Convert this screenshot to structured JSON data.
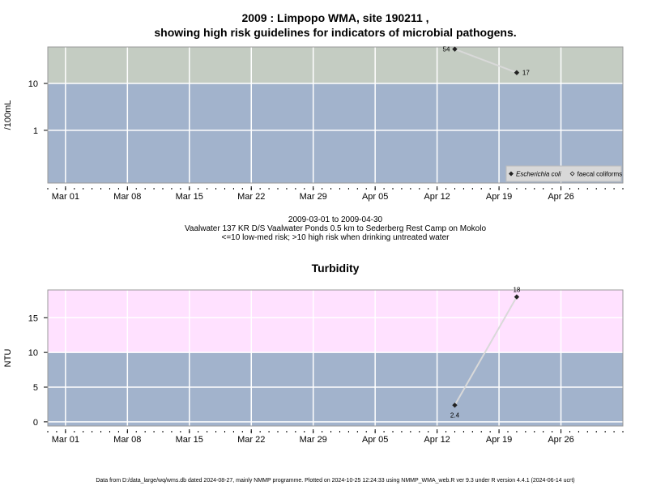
{
  "colors": {
    "panel": "#a2b3cc",
    "risk_band_micro": "#c4ccc2",
    "risk_band_turb": "#ffe1ff",
    "grid": "#ffffff",
    "marker": "#222222",
    "line": "#d9d9d9"
  },
  "chart_data": [
    {
      "type": "line",
      "title": [
        "2009 : Limpopo WMA, site 190211 ,",
        "showing high risk guidelines for indicators of microbial pathogens."
      ],
      "ylabel": "/100mL",
      "xlabel": "",
      "x_tick_labels": [
        "Mar 01",
        "Mar 08",
        "Mar 15",
        "Mar 22",
        "Mar 29",
        "Apr 05",
        "Apr 12",
        "Apr 19",
        "Apr 26"
      ],
      "x_tick_dates": [
        "2009-03-01",
        "2009-03-08",
        "2009-03-15",
        "2009-03-22",
        "2009-03-29",
        "2009-04-05",
        "2009-04-12",
        "2009-04-19",
        "2009-04-26"
      ],
      "xlim": [
        "2009-02-27",
        "2009-05-03"
      ],
      "y_scale": "log",
      "ylim": [
        0.075,
        60
      ],
      "y_ticks": [
        1,
        10
      ],
      "y_tick_labels": [
        "1",
        "10"
      ],
      "guideline": 10,
      "grid": true,
      "legend_position": "bottom-right",
      "legend": [
        {
          "name": "Escherichia coli",
          "marker": "filled-diamond",
          "italic": true
        },
        {
          "name": "faecal coliforms",
          "marker": "open-diamond",
          "italic": false
        }
      ],
      "series": [
        {
          "name": "Escherichia coli",
          "points": [
            {
              "x": "2009-04-14",
              "y": 54,
              "label": "54",
              "label_side": "left"
            },
            {
              "x": "2009-04-21",
              "y": 17,
              "label": "17",
              "label_side": "right"
            }
          ]
        }
      ]
    },
    {
      "type": "line",
      "title": [
        "Turbidity"
      ],
      "ylabel": "NTU",
      "xlabel": "",
      "x_tick_labels": [
        "Mar 01",
        "Mar 08",
        "Mar 15",
        "Mar 22",
        "Mar 29",
        "Apr 05",
        "Apr 12",
        "Apr 19",
        "Apr 26"
      ],
      "x_tick_dates": [
        "2009-03-01",
        "2009-03-08",
        "2009-03-15",
        "2009-03-22",
        "2009-03-29",
        "2009-04-05",
        "2009-04-12",
        "2009-04-19",
        "2009-04-26"
      ],
      "xlim": [
        "2009-02-27",
        "2009-05-03"
      ],
      "y_scale": "linear",
      "ylim": [
        -0.6,
        19
      ],
      "y_ticks": [
        0,
        5,
        10,
        15
      ],
      "y_tick_labels": [
        "0",
        "5",
        "10",
        "15"
      ],
      "guideline": 10,
      "grid": true,
      "series": [
        {
          "name": "Turbidity",
          "points": [
            {
              "x": "2009-04-14",
              "y": 2.4,
              "label": "2.4",
              "label_side": "below"
            },
            {
              "x": "2009-04-21",
              "y": 18,
              "label": "18",
              "label_side": "above"
            }
          ]
        }
      ]
    }
  ],
  "caption": {
    "date_range": "2009-03-01 to 2009-04-30",
    "site": "Vaalwater 137 KR D/S Vaalwater Ponds 0.5 km to Sederberg Rest Camp on Mokolo",
    "risk_note": "<=10 low-med risk; >10 high risk when drinking untreated water"
  },
  "footer": "Data from D:/data_large/wq/wms.db dated 2024-08-27, mainly NMMP programme. Plotted on 2024-10-25 12:24:33 using NMMP_WMA_web.R ver 9.3 under R version 4.4.1 (2024-06-14 ucrt)"
}
